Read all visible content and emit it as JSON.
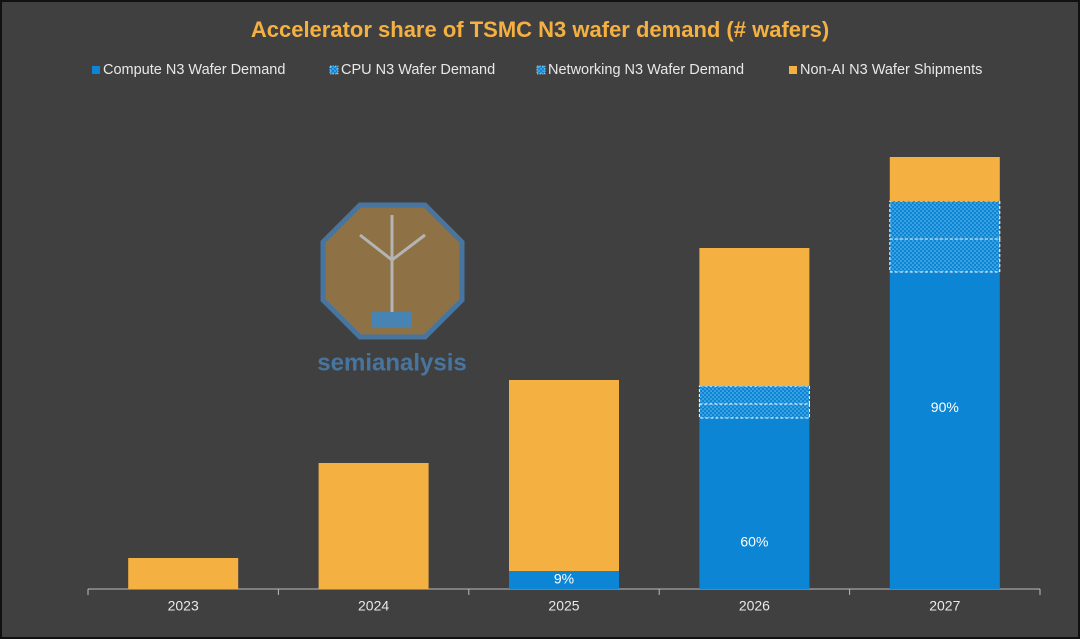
{
  "chart_data": {
    "type": "stacked_bar",
    "title": "Accelerator share of TSMC N3 wafer demand (# wafers)",
    "categories": [
      "2023",
      "2024",
      "2025",
      "2026",
      "2027"
    ],
    "series": [
      {
        "name": "Compute N3 Wafer Demand",
        "color": "#0c86d4",
        "fill_style": "solid",
        "values": [
          0,
          0,
          18,
          171,
          317
        ]
      },
      {
        "name": "CPU N3 Wafer Demand",
        "color": "#0c86d4",
        "fill_style": "hatched",
        "values": [
          0,
          0,
          0,
          14,
          33
        ]
      },
      {
        "name": "Networking N3 Wafer Demand",
        "color": "#0c86d4",
        "fill_style": "hatched",
        "values": [
          0,
          0,
          0,
          18,
          38
        ]
      },
      {
        "name": "Non-AI N3 Wafer Shipments",
        "color": "#f5b042",
        "fill_style": "solid",
        "values": [
          31,
          126,
          191,
          138,
          44
        ]
      }
    ],
    "share_labels": [
      null,
      null,
      "9%",
      "60%",
      "90%"
    ],
    "watermark": "semianalysis"
  }
}
